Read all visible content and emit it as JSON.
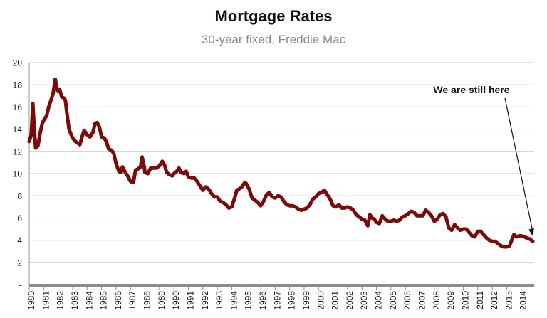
{
  "chart_data": {
    "type": "line",
    "title": "Mortgage Rates",
    "subtitle": "30-year fixed, Freddie Mac",
    "xlabel": "",
    "ylabel": "",
    "ylim": [
      0,
      20
    ],
    "xlim": [
      1980,
      2014.9
    ],
    "grid": true,
    "y_ticks": [
      {
        "value": 0,
        "label": "-"
      },
      {
        "value": 2,
        "label": "2"
      },
      {
        "value": 4,
        "label": "4"
      },
      {
        "value": 6,
        "label": "6"
      },
      {
        "value": 8,
        "label": "8"
      },
      {
        "value": 10,
        "label": "10"
      },
      {
        "value": 12,
        "label": "12"
      },
      {
        "value": 14,
        "label": "14"
      },
      {
        "value": 16,
        "label": "16"
      },
      {
        "value": 18,
        "label": "18"
      },
      {
        "value": 20,
        "label": "20"
      }
    ],
    "x_tick_labels": [
      "1980",
      "1981",
      "1982",
      "1983",
      "1984",
      "1985",
      "1986",
      "1987",
      "1988",
      "1989",
      "1990",
      "1991",
      "1992",
      "1993",
      "1994",
      "1995",
      "1996",
      "1997",
      "1998",
      "1999",
      "2000",
      "2001",
      "2002",
      "2003",
      "2004",
      "2005",
      "2006",
      "2007",
      "2008",
      "2009",
      "2010",
      "2011",
      "2012",
      "2013",
      "2014"
    ],
    "annotation": {
      "text": "We are still here",
      "x": 2014.8,
      "y": 4.0
    },
    "series": [
      {
        "color": "#7b0a0a",
        "points": [
          [
            1980.0,
            12.9
          ],
          [
            1980.15,
            13.5
          ],
          [
            1980.25,
            16.3
          ],
          [
            1980.35,
            14.0
          ],
          [
            1980.45,
            12.3
          ],
          [
            1980.6,
            12.5
          ],
          [
            1980.75,
            13.6
          ],
          [
            1980.9,
            14.5
          ],
          [
            1981.0,
            14.8
          ],
          [
            1981.2,
            15.2
          ],
          [
            1981.35,
            16.0
          ],
          [
            1981.5,
            16.6
          ],
          [
            1981.65,
            17.2
          ],
          [
            1981.8,
            18.5
          ],
          [
            1981.9,
            17.8
          ],
          [
            1982.0,
            17.4
          ],
          [
            1982.1,
            17.6
          ],
          [
            1982.25,
            16.9
          ],
          [
            1982.4,
            16.8
          ],
          [
            1982.5,
            16.6
          ],
          [
            1982.6,
            15.5
          ],
          [
            1982.75,
            14.0
          ],
          [
            1982.9,
            13.5
          ],
          [
            1983.0,
            13.2
          ],
          [
            1983.2,
            12.9
          ],
          [
            1983.4,
            12.7
          ],
          [
            1983.5,
            12.6
          ],
          [
            1983.65,
            13.3
          ],
          [
            1983.8,
            13.9
          ],
          [
            1984.0,
            13.5
          ],
          [
            1984.2,
            13.3
          ],
          [
            1984.4,
            13.7
          ],
          [
            1984.55,
            14.5
          ],
          [
            1984.7,
            14.6
          ],
          [
            1984.85,
            14.2
          ],
          [
            1985.0,
            13.3
          ],
          [
            1985.2,
            13.2
          ],
          [
            1985.35,
            12.8
          ],
          [
            1985.5,
            12.2
          ],
          [
            1985.7,
            12.1
          ],
          [
            1985.85,
            11.8
          ],
          [
            1986.0,
            10.9
          ],
          [
            1986.2,
            10.2
          ],
          [
            1986.3,
            10.1
          ],
          [
            1986.45,
            10.6
          ],
          [
            1986.6,
            10.2
          ],
          [
            1986.8,
            9.8
          ],
          [
            1987.0,
            9.3
          ],
          [
            1987.2,
            9.2
          ],
          [
            1987.35,
            10.3
          ],
          [
            1987.5,
            10.4
          ],
          [
            1987.7,
            10.6
          ],
          [
            1987.8,
            11.5
          ],
          [
            1987.95,
            10.6
          ],
          [
            1988.0,
            10.1
          ],
          [
            1988.2,
            10.0
          ],
          [
            1988.4,
            10.5
          ],
          [
            1988.6,
            10.5
          ],
          [
            1988.8,
            10.5
          ],
          [
            1989.0,
            10.7
          ],
          [
            1989.2,
            11.1
          ],
          [
            1989.35,
            10.8
          ],
          [
            1989.5,
            10.1
          ],
          [
            1989.7,
            9.9
          ],
          [
            1989.9,
            9.8
          ],
          [
            1990.0,
            10.0
          ],
          [
            1990.2,
            10.2
          ],
          [
            1990.35,
            10.5
          ],
          [
            1990.5,
            10.1
          ],
          [
            1990.7,
            10.0
          ],
          [
            1990.85,
            10.2
          ],
          [
            1991.0,
            9.7
          ],
          [
            1991.2,
            9.6
          ],
          [
            1991.4,
            9.6
          ],
          [
            1991.6,
            9.3
          ],
          [
            1991.8,
            8.9
          ],
          [
            1992.0,
            8.5
          ],
          [
            1992.2,
            8.8
          ],
          [
            1992.4,
            8.6
          ],
          [
            1992.6,
            8.2
          ],
          [
            1992.8,
            7.9
          ],
          [
            1993.0,
            7.9
          ],
          [
            1993.2,
            7.5
          ],
          [
            1993.4,
            7.4
          ],
          [
            1993.6,
            7.2
          ],
          [
            1993.8,
            6.9
          ],
          [
            1994.0,
            7.0
          ],
          [
            1994.2,
            7.8
          ],
          [
            1994.35,
            8.5
          ],
          [
            1994.5,
            8.6
          ],
          [
            1994.7,
            8.8
          ],
          [
            1994.9,
            9.2
          ],
          [
            1995.0,
            9.1
          ],
          [
            1995.2,
            8.6
          ],
          [
            1995.4,
            7.8
          ],
          [
            1995.6,
            7.6
          ],
          [
            1995.8,
            7.4
          ],
          [
            1996.0,
            7.1
          ],
          [
            1996.2,
            7.5
          ],
          [
            1996.4,
            8.1
          ],
          [
            1996.6,
            8.3
          ],
          [
            1996.8,
            7.9
          ],
          [
            1997.0,
            7.8
          ],
          [
            1997.2,
            8.0
          ],
          [
            1997.4,
            7.9
          ],
          [
            1997.6,
            7.5
          ],
          [
            1997.8,
            7.2
          ],
          [
            1998.0,
            7.1
          ],
          [
            1998.2,
            7.1
          ],
          [
            1998.4,
            7.0
          ],
          [
            1998.6,
            6.8
          ],
          [
            1998.8,
            6.7
          ],
          [
            1999.0,
            6.8
          ],
          [
            1999.2,
            6.9
          ],
          [
            1999.4,
            7.2
          ],
          [
            1999.6,
            7.7
          ],
          [
            1999.8,
            7.9
          ],
          [
            2000.0,
            8.2
          ],
          [
            2000.2,
            8.3
          ],
          [
            2000.4,
            8.5
          ],
          [
            2000.6,
            8.1
          ],
          [
            2000.8,
            7.7
          ],
          [
            2001.0,
            7.1
          ],
          [
            2001.2,
            7.0
          ],
          [
            2001.4,
            7.2
          ],
          [
            2001.6,
            6.9
          ],
          [
            2001.8,
            6.9
          ],
          [
            2002.0,
            7.0
          ],
          [
            2002.2,
            6.9
          ],
          [
            2002.4,
            6.7
          ],
          [
            2002.6,
            6.3
          ],
          [
            2002.8,
            6.1
          ],
          [
            2003.0,
            5.9
          ],
          [
            2003.2,
            5.8
          ],
          [
            2003.4,
            5.3
          ],
          [
            2003.55,
            6.3
          ],
          [
            2003.7,
            6.0
          ],
          [
            2003.85,
            5.9
          ],
          [
            2004.0,
            5.6
          ],
          [
            2004.2,
            5.5
          ],
          [
            2004.4,
            6.2
          ],
          [
            2004.6,
            5.9
          ],
          [
            2004.8,
            5.7
          ],
          [
            2005.0,
            5.7
          ],
          [
            2005.2,
            5.8
          ],
          [
            2005.4,
            5.7
          ],
          [
            2005.6,
            5.8
          ],
          [
            2005.8,
            6.1
          ],
          [
            2006.0,
            6.2
          ],
          [
            2006.2,
            6.4
          ],
          [
            2006.4,
            6.6
          ],
          [
            2006.6,
            6.5
          ],
          [
            2006.8,
            6.2
          ],
          [
            2007.0,
            6.2
          ],
          [
            2007.2,
            6.2
          ],
          [
            2007.4,
            6.7
          ],
          [
            2007.6,
            6.5
          ],
          [
            2007.8,
            6.2
          ],
          [
            2008.0,
            5.7
          ],
          [
            2008.2,
            5.9
          ],
          [
            2008.4,
            6.3
          ],
          [
            2008.6,
            6.4
          ],
          [
            2008.8,
            6.1
          ],
          [
            2009.0,
            5.1
          ],
          [
            2009.2,
            4.9
          ],
          [
            2009.4,
            5.4
          ],
          [
            2009.6,
            5.1
          ],
          [
            2009.8,
            4.9
          ],
          [
            2010.0,
            5.0
          ],
          [
            2010.2,
            5.0
          ],
          [
            2010.4,
            4.7
          ],
          [
            2010.6,
            4.4
          ],
          [
            2010.8,
            4.3
          ],
          [
            2011.0,
            4.8
          ],
          [
            2011.2,
            4.8
          ],
          [
            2011.4,
            4.5
          ],
          [
            2011.6,
            4.2
          ],
          [
            2011.8,
            4.0
          ],
          [
            2012.0,
            3.9
          ],
          [
            2012.2,
            3.9
          ],
          [
            2012.4,
            3.7
          ],
          [
            2012.6,
            3.5
          ],
          [
            2012.8,
            3.4
          ],
          [
            2013.0,
            3.4
          ],
          [
            2013.2,
            3.5
          ],
          [
            2013.35,
            4.0
          ],
          [
            2013.5,
            4.5
          ],
          [
            2013.7,
            4.3
          ],
          [
            2013.9,
            4.4
          ],
          [
            2014.0,
            4.4
          ],
          [
            2014.2,
            4.3
          ],
          [
            2014.4,
            4.2
          ],
          [
            2014.6,
            4.1
          ],
          [
            2014.8,
            3.9
          ]
        ]
      }
    ]
  }
}
